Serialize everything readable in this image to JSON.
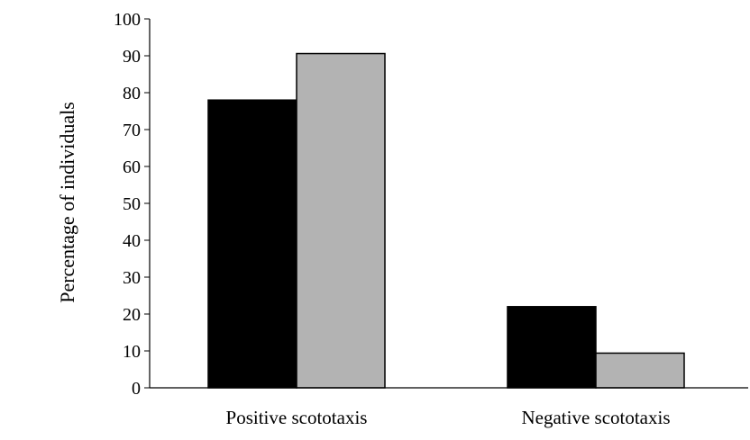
{
  "chart_data": {
    "type": "bar",
    "title": "",
    "xlabel": "",
    "ylabel": "Percentage of individuals",
    "categories": [
      "Positive scototaxis",
      "Negative scototaxis"
    ],
    "series": [
      {
        "values": [
          78,
          22
        ],
        "color": "#000000"
      },
      {
        "values": [
          90.6,
          9.4
        ],
        "color": "#b3b3b3"
      }
    ],
    "ylim": [
      0,
      100
    ],
    "yticks": [
      0,
      10,
      20,
      30,
      40,
      50,
      60,
      70,
      80,
      90,
      100
    ],
    "ytick_labels": [
      "0",
      "10",
      "20",
      "30",
      "40",
      "50",
      "60",
      "70",
      "80",
      "90",
      "100"
    ],
    "grid": false,
    "legend": "none"
  }
}
